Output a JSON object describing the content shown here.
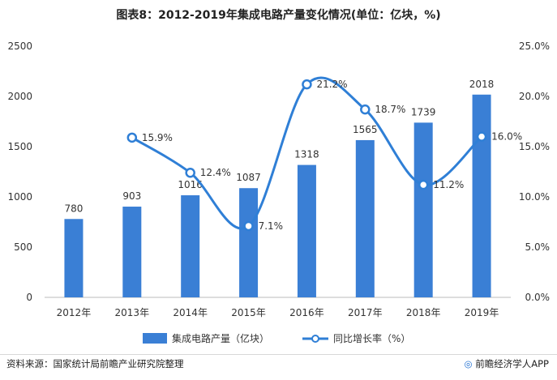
{
  "chart_data": {
    "type": "bar+line",
    "title": "图表8：2012-2019年集成电路产量变化情况(单位：亿块，%)",
    "categories": [
      "2012年",
      "2013年",
      "2014年",
      "2015年",
      "2016年",
      "2017年",
      "2018年",
      "2019年"
    ],
    "series": [
      {
        "name": "集成电路产量（亿块）",
        "type": "bar",
        "axis": "left",
        "values": [
          780,
          903,
          1016,
          1087,
          1318,
          1565,
          1739,
          2018
        ],
        "labels": [
          "780",
          "903",
          "1016",
          "1087",
          "1318",
          "1565",
          "1739",
          "2018"
        ]
      },
      {
        "name": "同比增长率（%）",
        "type": "line",
        "axis": "right",
        "values": [
          null,
          15.9,
          12.4,
          7.1,
          21.2,
          18.7,
          11.2,
          16.0
        ],
        "labels": [
          "",
          "15.9%",
          "12.4%",
          "7.1%",
          "21.2%",
          "18.7%",
          "11.2%",
          "16.0%"
        ]
      }
    ],
    "y_left": {
      "min": 0,
      "max": 2500,
      "ticks": [
        "0",
        "500",
        "1000",
        "1500",
        "2000",
        "2500"
      ]
    },
    "y_right": {
      "min": 0,
      "max": 25,
      "ticks": [
        "0.0%",
        "5.0%",
        "10.0%",
        "15.0%",
        "20.0%",
        "25.0%"
      ]
    },
    "legend": [
      "集成电路产量（亿块）",
      "同比增长率（%）"
    ],
    "colors": {
      "bar": "#3a7fd5",
      "line": "#2f7fd6",
      "marker_fill": "#ffffff",
      "axis": "#bbbbbb",
      "text": "#333333"
    }
  },
  "footer": {
    "source": "资料来源：国家统计局前瞻产业研究院整理",
    "brand_mark": "◎",
    "brand": "前瞻经济学人APP"
  }
}
